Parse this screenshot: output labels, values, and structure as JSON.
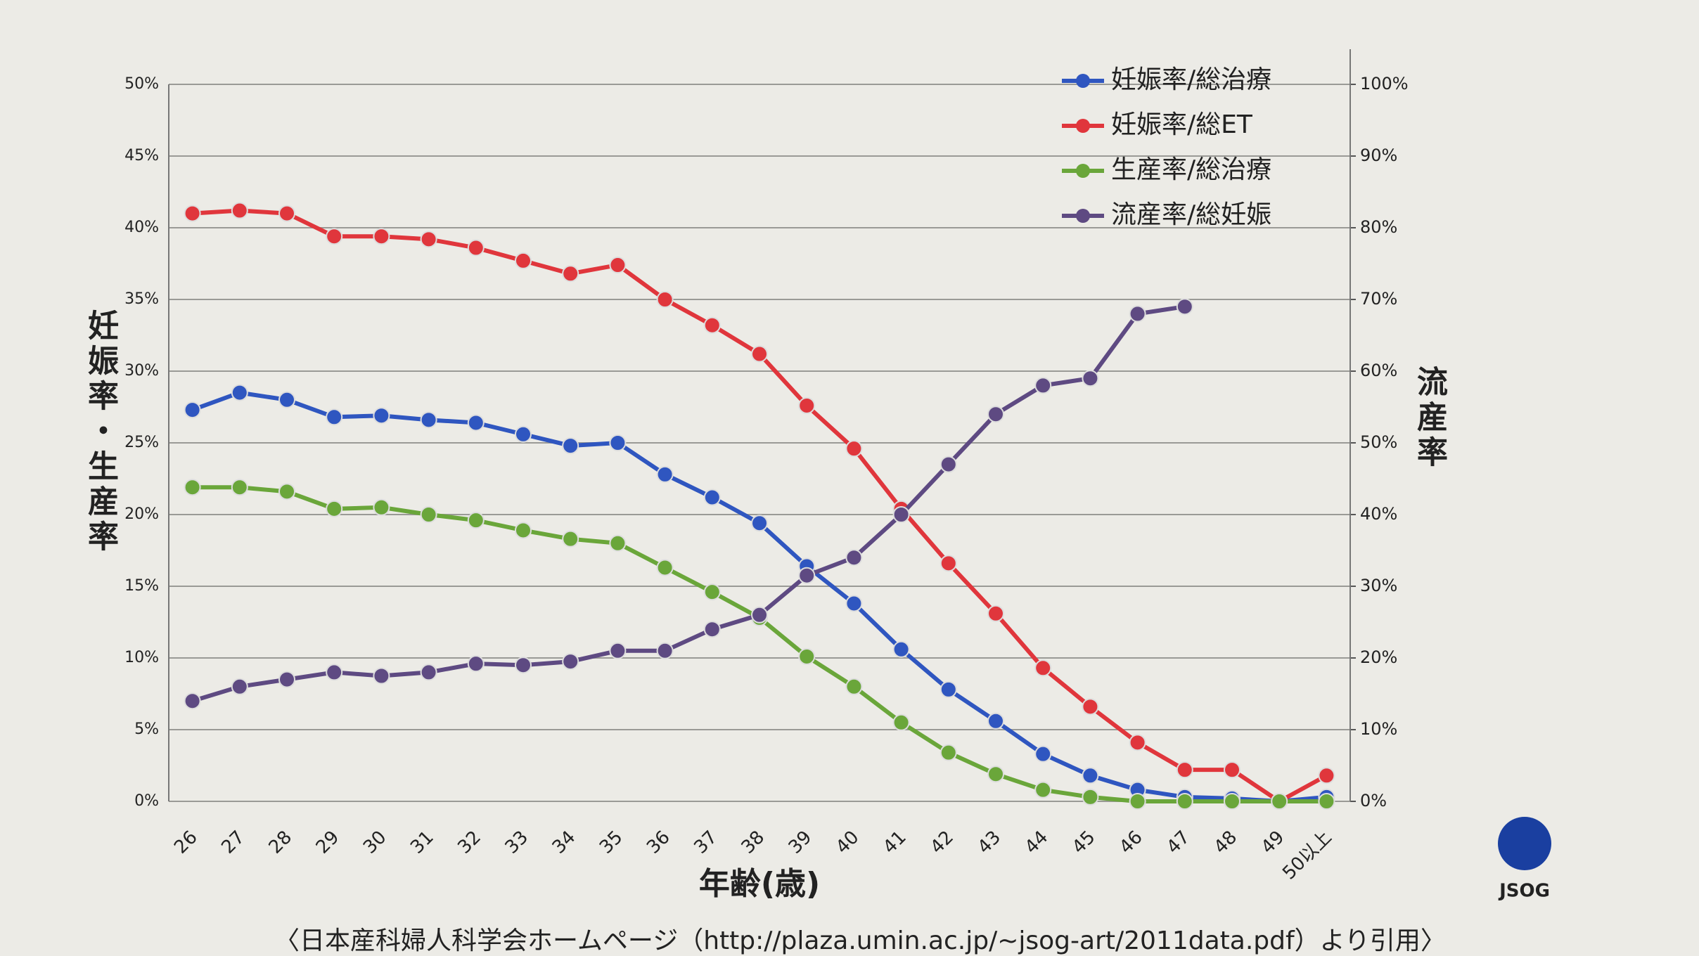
{
  "chart_data": {
    "type": "line",
    "y_label": "妊娠率・生産率",
    "y2_label": "流産率",
    "x_label": "年齢(歳)",
    "source": "〈日本産科婦人科学会ホームページ（http://plaza.umin.ac.jp/~jsog-art/2011data.pdf）より引用〉",
    "logo": "JSOG",
    "categories": [
      "26",
      "27",
      "28",
      "29",
      "30",
      "31",
      "32",
      "33",
      "34",
      "35",
      "36",
      "37",
      "38",
      "39",
      "40",
      "41",
      "42",
      "43",
      "44",
      "45",
      "46",
      "47",
      "48",
      "49",
      "50以上"
    ],
    "series": [
      {
        "name": "妊娠率/総治療",
        "color": "#2f56c0",
        "values": [
          27.3,
          28.5,
          28.0,
          26.8,
          26.9,
          26.6,
          26.4,
          25.6,
          24.8,
          25.0,
          22.8,
          21.2,
          19.4,
          16.4,
          13.8,
          10.6,
          7.8,
          5.6,
          3.3,
          1.8,
          0.8,
          0.3,
          0.2,
          0,
          0.3
        ]
      },
      {
        "name": "妊娠率/総ET",
        "color": "#e0363c",
        "values": [
          41.0,
          41.2,
          41.0,
          39.4,
          39.4,
          39.2,
          38.6,
          37.7,
          36.8,
          37.4,
          35.0,
          33.2,
          31.2,
          27.6,
          24.6,
          20.4,
          16.6,
          13.1,
          9.3,
          6.6,
          4.1,
          2.2,
          2.2,
          0,
          1.8
        ]
      },
      {
        "name": "生産率/総治療",
        "color": "#6aa63a",
        "values": [
          21.9,
          21.9,
          21.6,
          20.4,
          20.5,
          20.0,
          19.6,
          18.9,
          18.3,
          18.0,
          16.3,
          14.6,
          12.8,
          10.1,
          8.0,
          5.5,
          3.4,
          1.9,
          0.8,
          0.3,
          0,
          0,
          0,
          0,
          0
        ]
      },
      {
        "name": "流産率/総妊娠",
        "color": "#5e4a82",
        "axis": "y2",
        "values": [
          14,
          16,
          17,
          18,
          17.5,
          18,
          19.2,
          19,
          19.5,
          21,
          21,
          24,
          26,
          31.5,
          34,
          40,
          47,
          54,
          58,
          59,
          68,
          69,
          null,
          null,
          null
        ]
      }
    ],
    "ylim": [
      0,
      50
    ],
    "yticks": [
      {
        "value": 0,
        "label": "0%"
      },
      {
        "value": 5,
        "label": "5%"
      },
      {
        "value": 10,
        "label": "10%"
      },
      {
        "value": 15,
        "label": "15%"
      },
      {
        "value": 20,
        "label": "20%"
      },
      {
        "value": 25,
        "label": "25%"
      },
      {
        "value": 30,
        "label": "30%"
      },
      {
        "value": 35,
        "label": "35%"
      },
      {
        "value": 40,
        "label": "40%"
      },
      {
        "value": 45,
        "label": "45%"
      },
      {
        "value": 50,
        "label": "50%"
      }
    ],
    "y2lim": [
      0,
      100
    ],
    "y2ticks": [
      {
        "value": 0,
        "label": "0%"
      },
      {
        "value": 10,
        "label": "10%"
      },
      {
        "value": 20,
        "label": "20%"
      },
      {
        "value": 30,
        "label": "30%"
      },
      {
        "value": 40,
        "label": "40%"
      },
      {
        "value": 50,
        "label": "50%"
      },
      {
        "value": 60,
        "label": "60%"
      },
      {
        "value": 70,
        "label": "70%"
      },
      {
        "value": 80,
        "label": "80%"
      },
      {
        "value": 90,
        "label": "90%"
      },
      {
        "value": 100,
        "label": "100%"
      }
    ],
    "grid": true,
    "legend": "top-right"
  }
}
